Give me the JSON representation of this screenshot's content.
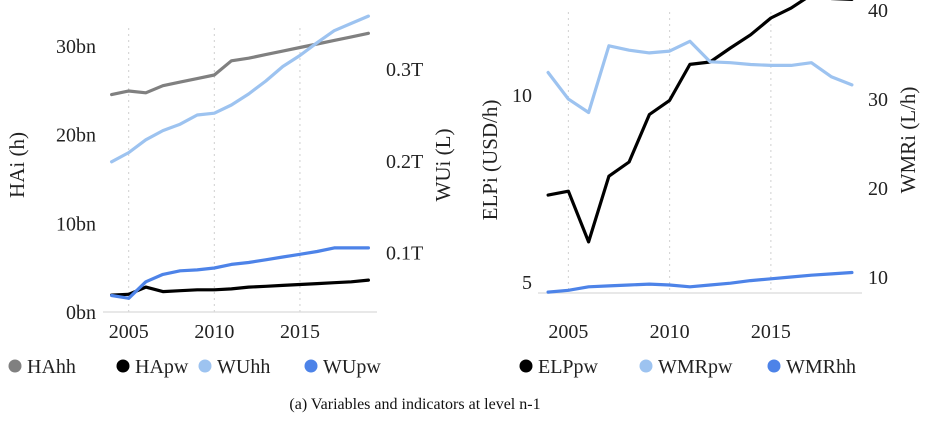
{
  "caption": "(a) Variables and indicators at level n-1",
  "chart_data": [
    {
      "type": "line",
      "x_ticks": [
        "2005",
        "2010",
        "2015"
      ],
      "y_left": {
        "label": "HAi (h)",
        "ticks": [
          "0bn",
          "10bn",
          "20bn",
          "30bn"
        ],
        "tick_values": [
          0,
          10,
          20,
          30
        ],
        "range": [
          0,
          32
        ]
      },
      "y_right": {
        "label": "WUi (L)",
        "ticks": [
          "0.1T",
          "0.2T",
          "0.3T"
        ],
        "tick_values": [
          0.1,
          0.2,
          0.3
        ],
        "range": [
          0.035,
          0.345
        ]
      },
      "xlim": [
        2003.5,
        2019.5
      ],
      "grid": "vertical dotted",
      "legend_position": "bottom",
      "series": [
        {
          "name": "HAhh",
          "color": "#808080",
          "axis": "left",
          "x": [
            2004,
            2005,
            2006,
            2007,
            2008,
            2009,
            2010,
            2011,
            2012,
            2013,
            2014,
            2015,
            2016,
            2017,
            2018,
            2019
          ],
          "values": [
            24.5,
            24.9,
            24.7,
            25.5,
            25.9,
            26.3,
            26.7,
            28.3,
            28.6,
            29.0,
            29.4,
            29.8,
            30.2,
            30.6,
            31.0,
            31.4
          ]
        },
        {
          "name": "HApw",
          "color": "#000000",
          "axis": "left",
          "x": [
            2004,
            2005,
            2006,
            2007,
            2008,
            2009,
            2010,
            2011,
            2012,
            2013,
            2014,
            2015,
            2016,
            2017,
            2018,
            2019
          ],
          "values": [
            1.9,
            2.0,
            2.8,
            2.3,
            2.4,
            2.5,
            2.5,
            2.6,
            2.8,
            2.9,
            3.0,
            3.1,
            3.2,
            3.3,
            3.4,
            3.6
          ]
        },
        {
          "name": "WUhh",
          "color": "#9dc3f0",
          "axis": "right",
          "x": [
            2004,
            2005,
            2006,
            2007,
            2008,
            2009,
            2010,
            2011,
            2012,
            2013,
            2014,
            2015,
            2016,
            2017,
            2018,
            2019
          ],
          "values": [
            0.199,
            0.209,
            0.223,
            0.233,
            0.24,
            0.25,
            0.252,
            0.261,
            0.273,
            0.287,
            0.303,
            0.315,
            0.329,
            0.342,
            0.35,
            0.358
          ]
        },
        {
          "name": "WUpw",
          "color": "#4d83e8",
          "axis": "right",
          "x": [
            2004,
            2005,
            2006,
            2007,
            2008,
            2009,
            2010,
            2011,
            2012,
            2013,
            2014,
            2015,
            2016,
            2017,
            2018,
            2019
          ],
          "values": [
            0.053,
            0.05,
            0.068,
            0.076,
            0.08,
            0.081,
            0.083,
            0.087,
            0.089,
            0.092,
            0.095,
            0.098,
            0.101,
            0.105,
            0.105,
            0.105
          ]
        }
      ]
    },
    {
      "type": "line",
      "x_ticks": [
        "2005",
        "2010",
        "2015"
      ],
      "y_left": {
        "label": "ELPi (USD/h)",
        "ticks": [
          "5",
          "10"
        ],
        "tick_values": [
          5,
          10
        ],
        "range": [
          4.8,
          13.6
        ],
        "scale": "log"
      },
      "y_right": {
        "label": "WMRi (L/h)",
        "ticks": [
          "10",
          "20",
          "30",
          "40"
        ],
        "tick_values": [
          10,
          20,
          30,
          40
        ],
        "range": [
          8.2,
          39.8
        ]
      },
      "xlim": [
        2003.5,
        2019.5
      ],
      "grid": "vertical dotted",
      "legend_position": "bottom",
      "series": [
        {
          "name": "ELPpw",
          "color": "#000000",
          "axis": "left",
          "x": [
            2004,
            2005,
            2006,
            2007,
            2008,
            2009,
            2010,
            2011,
            2012,
            2013,
            2014,
            2015,
            2016,
            2017,
            2018,
            2019
          ],
          "values": [
            6.9,
            7.0,
            5.8,
            7.4,
            7.8,
            9.3,
            9.8,
            11.2,
            11.3,
            11.9,
            12.5,
            13.3,
            13.8,
            14.5,
            14.3,
            14.25
          ]
        },
        {
          "name": "WMRpw",
          "color": "#9dc3f0",
          "axis": "right",
          "x": [
            2004,
            2005,
            2006,
            2007,
            2008,
            2009,
            2010,
            2011,
            2012,
            2013,
            2014,
            2015,
            2016,
            2017,
            2018,
            2019
          ],
          "values": [
            33.0,
            30.0,
            28.5,
            36.0,
            35.5,
            35.2,
            35.4,
            36.5,
            34.2,
            34.1,
            33.9,
            33.8,
            33.8,
            34.1,
            32.5,
            31.6
          ]
        },
        {
          "name": "WMRhh",
          "color": "#4d83e8",
          "axis": "right",
          "x": [
            2004,
            2005,
            2006,
            2007,
            2008,
            2009,
            2010,
            2011,
            2012,
            2013,
            2014,
            2015,
            2016,
            2017,
            2018,
            2019
          ],
          "values": [
            8.3,
            8.5,
            8.9,
            9.0,
            9.1,
            9.2,
            9.1,
            8.9,
            9.1,
            9.3,
            9.6,
            9.8,
            10.0,
            10.2,
            10.35,
            10.5
          ]
        }
      ]
    }
  ]
}
